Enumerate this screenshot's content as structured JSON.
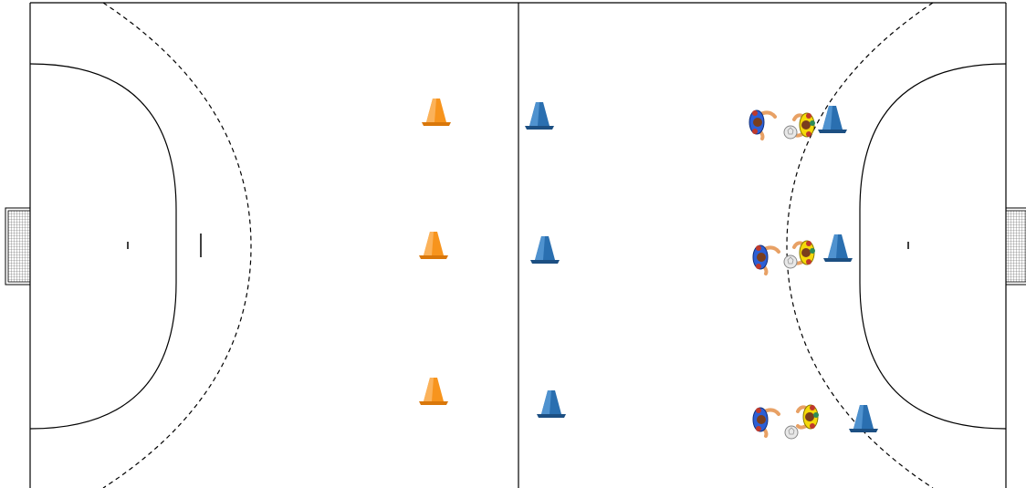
{
  "court": {
    "background": "#ffffff",
    "line_color": "#000000",
    "net_color": "#555555"
  },
  "cone_colors": {
    "orange": "#f7941d",
    "orange_dark": "#d9770a",
    "blue": "#2a6fb0",
    "blue_dark": "#1c4f82"
  },
  "team_colors": {
    "blue_team": "#2c5fd6",
    "yellow_team": "#f5d90a",
    "skin": "#e8a165",
    "ball": "#e8e8e8"
  },
  "icons": {
    "cone": "cone-icon",
    "player": "player-icon",
    "ball": "ball-icon",
    "goal": "goal-net-icon"
  }
}
